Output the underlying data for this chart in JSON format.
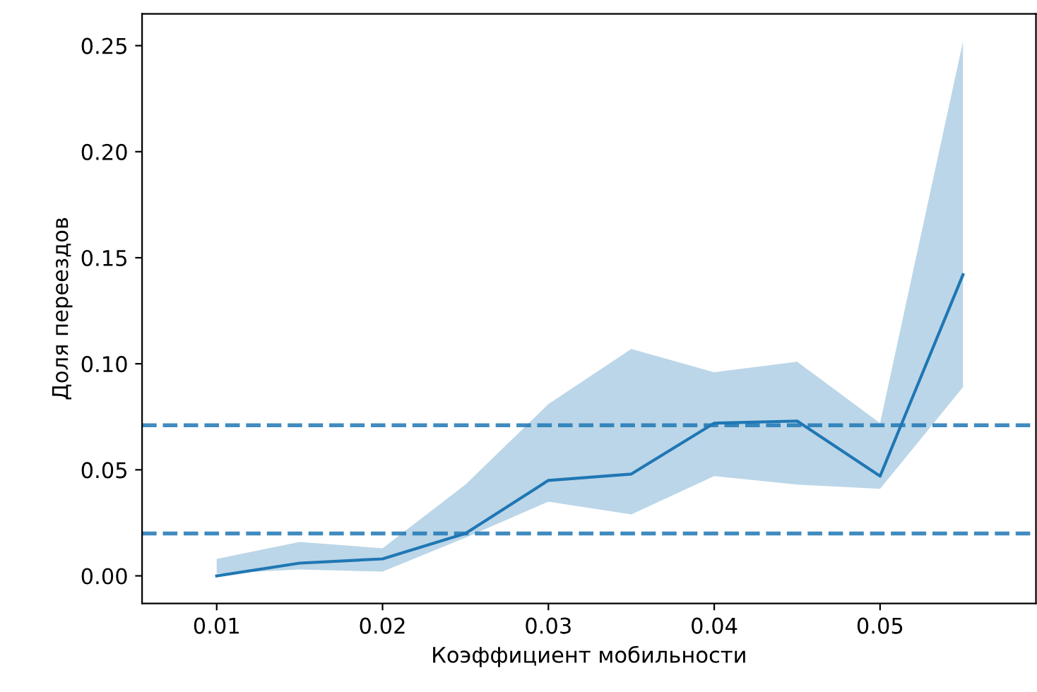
{
  "chart_data": {
    "type": "line",
    "xlabel": "Коэффициент мобильности",
    "ylabel": "Доля переездов",
    "x": [
      0.01,
      0.015,
      0.02,
      0.025,
      0.03,
      0.035,
      0.04,
      0.045,
      0.05,
      0.055
    ],
    "series": [
      {
        "color": "#1f77b4",
        "values": [
          0.0,
          0.006,
          0.008,
          0.02,
          0.045,
          0.048,
          0.072,
          0.073,
          0.047,
          0.142
        ],
        "lower": [
          0.001,
          0.003,
          0.002,
          0.018,
          0.035,
          0.029,
          0.047,
          0.043,
          0.041,
          0.089
        ],
        "upper": [
          0.008,
          0.016,
          0.013,
          0.043,
          0.081,
          0.107,
          0.096,
          0.101,
          0.072,
          0.252
        ]
      }
    ],
    "ref_lines": [
      {
        "axis": "y",
        "value": 0.071,
        "color": "#1f77b4",
        "line_style": "dashed"
      },
      {
        "axis": "y",
        "value": 0.02,
        "color": "#1f77b4",
        "line_style": "dashed"
      }
    ],
    "xlim": [
      0.0055,
      0.0594
    ],
    "xticks": [
      0.01,
      0.02,
      0.03,
      0.04,
      0.05
    ],
    "ylim": [
      -0.013,
      0.265
    ],
    "yticks": [
      {
        "value": 0,
        "label": "0.00"
      },
      {
        "value": 0.05,
        "label": "0.05"
      },
      {
        "value": 0.1,
        "label": "0.10"
      },
      {
        "value": 0.15,
        "label": "0.15"
      },
      {
        "value": 0.2,
        "label": "0.20"
      },
      {
        "value": 0.25,
        "label": "0.25"
      }
    ]
  }
}
